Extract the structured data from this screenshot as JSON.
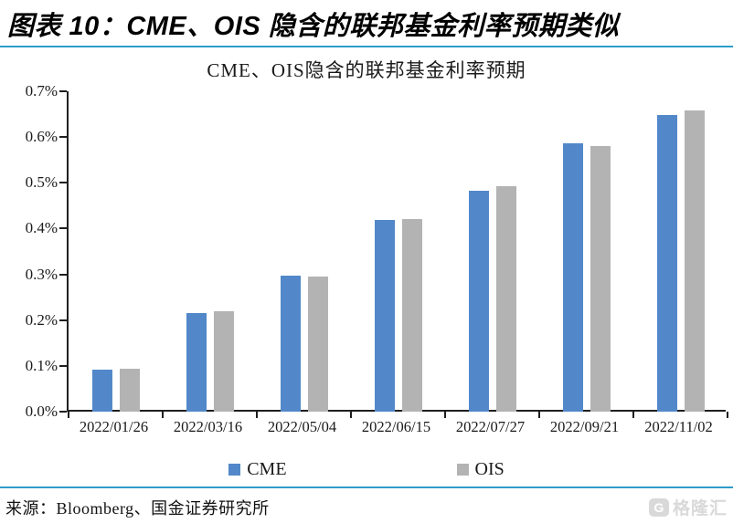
{
  "page": {
    "report_title": "图表 10：CME、OIS 隐含的联邦基金利率预期类似",
    "source_label": "来源：Bloomberg、国金证券研究所",
    "watermark": {
      "logo_letter": "G",
      "text": "格隆汇"
    },
    "colors": {
      "accent_line": "#2e9cc9",
      "axis": "#1f1f1f",
      "cme_blue": "#5288c9",
      "ois_gray": "#b3b3b3",
      "watermark_gray": "#d9d9d9"
    }
  },
  "chart_data": {
    "type": "bar",
    "title": "CME、OIS隐含的联邦基金利率预期",
    "categories": [
      "2022/01/26",
      "2022/03/16",
      "2022/05/04",
      "2022/06/15",
      "2022/07/27",
      "2022/09/21",
      "2022/11/02"
    ],
    "series": [
      {
        "name": "CME",
        "color": "#5288c9",
        "values": [
          0.092,
          0.215,
          0.298,
          0.419,
          0.483,
          0.587,
          0.648
        ]
      },
      {
        "name": "OIS",
        "color": "#b3b3b3",
        "values": [
          0.094,
          0.22,
          0.296,
          0.421,
          0.493,
          0.581,
          0.658
        ]
      }
    ],
    "unit": "%",
    "ylim": [
      0,
      0.7
    ],
    "ytick_step": 0.1,
    "ytick_labels": [
      "0.0%",
      "0.1%",
      "0.2%",
      "0.3%",
      "0.4%",
      "0.5%",
      "0.6%",
      "0.7%"
    ],
    "grid": false,
    "legend_position": "bottom"
  }
}
